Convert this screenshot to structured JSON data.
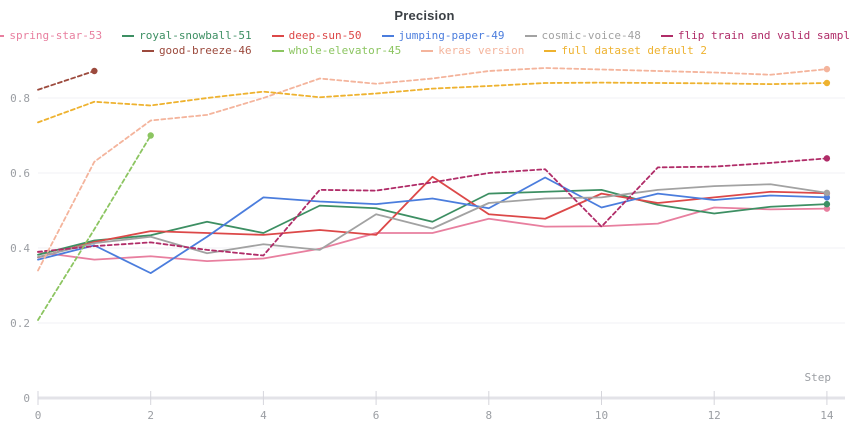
{
  "chart_data": {
    "type": "line",
    "title": "Precision",
    "xlabel": "Step",
    "ylabel": "",
    "x_ticks": [
      0,
      2,
      4,
      6,
      8,
      10,
      12,
      14
    ],
    "y_ticks": [
      0,
      0.2,
      0.4,
      0.6,
      0.8
    ],
    "xlim": [
      0,
      14
    ],
    "ylim": [
      0,
      0.95
    ],
    "grid": "horizontal-only",
    "legend_position": "top",
    "x": [
      0,
      1,
      2,
      3,
      4,
      5,
      6,
      7,
      8,
      9,
      10,
      11,
      12,
      13,
      14
    ],
    "series": [
      {
        "name": "spring-star-53",
        "color": "#e87f9f",
        "style": "solid",
        "values": [
          0.389,
          0.369,
          0.378,
          0.365,
          0.372,
          0.398,
          0.44,
          0.44,
          0.478,
          0.457,
          0.458,
          0.465,
          0.508,
          0.503,
          0.505
        ]
      },
      {
        "name": "royal-snowball-51",
        "color": "#3d8f63",
        "style": "solid",
        "values": [
          0.382,
          0.42,
          0.434,
          0.47,
          0.44,
          0.513,
          0.506,
          0.47,
          0.545,
          0.55,
          0.555,
          0.515,
          0.492,
          0.51,
          0.517
        ]
      },
      {
        "name": "deep-sun-50",
        "color": "#dc4848",
        "style": "solid",
        "values": [
          0.375,
          0.416,
          0.445,
          0.44,
          0.435,
          0.448,
          0.435,
          0.59,
          0.49,
          0.478,
          0.545,
          0.52,
          0.535,
          0.55,
          0.546
        ]
      },
      {
        "name": "jumping-paper-49",
        "color": "#4b7ddd",
        "style": "solid",
        "values": [
          0.369,
          0.407,
          0.333,
          0.43,
          0.535,
          0.524,
          0.517,
          0.532,
          0.506,
          0.588,
          0.508,
          0.545,
          0.528,
          0.54,
          0.535
        ]
      },
      {
        "name": "cosmic-voice-48",
        "color": "#a2a2a2",
        "style": "solid",
        "values": [
          0.376,
          0.413,
          0.43,
          0.386,
          0.41,
          0.395,
          0.49,
          0.452,
          0.52,
          0.532,
          0.535,
          0.555,
          0.565,
          0.57,
          0.547
        ]
      },
      {
        "name": "flip train and valid sample",
        "color": "#b02c68",
        "style": "dashed",
        "values": [
          0.39,
          0.405,
          0.415,
          0.395,
          0.38,
          0.555,
          0.553,
          0.575,
          0.6,
          0.61,
          0.457,
          0.615,
          0.617,
          0.627,
          0.639
        ]
      },
      {
        "name": "good-breeze-46",
        "color": "#9c4a3d",
        "style": "dashed",
        "values": [
          0.822,
          0.872
        ]
      },
      {
        "name": "whole-elevator-45",
        "color": "#8cc561",
        "style": "dashed",
        "values": [
          0.208,
          0.45,
          0.7
        ]
      },
      {
        "name": "keras version",
        "color": "#f4b49c",
        "style": "dashed",
        "values": [
          0.34,
          0.63,
          0.74,
          0.755,
          0.8,
          0.852,
          0.838,
          0.852,
          0.872,
          0.88,
          0.876,
          0.872,
          0.868,
          0.862,
          0.877
        ]
      },
      {
        "name": "full dataset default 2",
        "color": "#eeb22f",
        "style": "dashed",
        "values": [
          0.735,
          0.79,
          0.78,
          0.8,
          0.817,
          0.802,
          0.812,
          0.825,
          0.832,
          0.84,
          0.841,
          0.84,
          0.839,
          0.837,
          0.84
        ]
      }
    ]
  }
}
